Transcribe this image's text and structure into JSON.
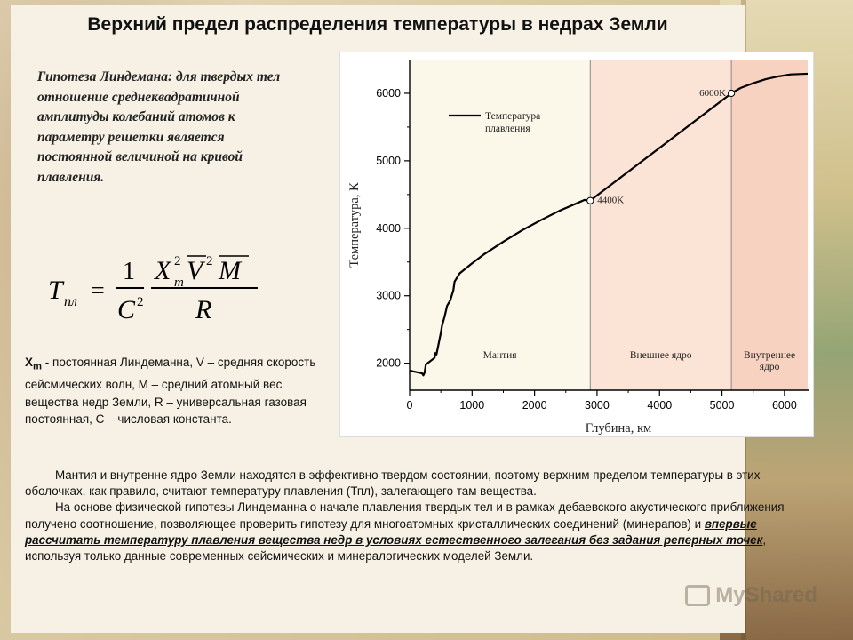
{
  "slide": {
    "title": "Верхний предел распределения температуры в недрах Земли",
    "hypothesis_text": "Гипотеза Линдемана: для твердых тел отношение среднеквадратичной амплитуды колебаний атомов к параметру решетки является постоянной величиной на кривой плавления.",
    "formula": {
      "lhs": "T",
      "lhs_sub": "пл",
      "num1": "1",
      "den1": "C",
      "den1_sup": "2",
      "num2_x": "X",
      "num2_x_sup": "2",
      "num2_x_sub": "m",
      "num2_v": "V",
      "num2_v_sup": "2",
      "num2_m": "M",
      "den2": "R"
    },
    "definitions_text": "X",
    "definitions_sub": "m",
    "definitions_rest": " - постоянная Линдеманна, V – средняя скорость сейсмических волн, M – средний атомный вес вещества недр Земли, R – универсальная газовая постоянная, C – числовая константа.",
    "paragraph1": "Мантия и внутренне ядро Земли находятся в эффективно твердом состоянии, поэтому верхним пределом температуры в этих оболочках, как правило, считают температуру плавления (Тпл), залегающего там вещества.",
    "paragraph2_start": "На основе физической гипотезы Линдеманна о начале плавления твердых тел и в рамках дебаевского акустического приближения получено соотношение, позволяющее проверить гипотезу для многоатомных кристаллических соединений (минерапов) и ",
    "paragraph2_emph": "впервые рассчитать температуру плавления вещества недр в условиях естественного залегания без задания реперных точек",
    "paragraph2_end": ", используя только данные современных сейсмических и минералогических моделей Земли.",
    "watermark": "MyShared"
  },
  "colors": {
    "mantle_bg": "#fbf8ea",
    "outer_core_bg": "#fbe3d6",
    "inner_core_bg": "#f8d2c0",
    "line": "#000000"
  },
  "chart_data": {
    "type": "line",
    "title": "",
    "xlabel": "Глубина, км",
    "ylabel": "Температура, К",
    "xlim": [
      0,
      6400
    ],
    "ylim": [
      1600,
      6500
    ],
    "xticks": [
      0,
      1000,
      2000,
      3000,
      4000,
      5000,
      6000
    ],
    "yticks": [
      2000,
      3000,
      4000,
      5000,
      6000
    ],
    "legend": "top-left",
    "series": [
      {
        "name": "Температура плавления",
        "x": [
          0,
          200,
          220,
          240,
          260,
          400,
          410,
          430,
          500,
          520,
          560,
          600,
          650,
          700,
          720,
          800,
          1000,
          1200,
          1500,
          1800,
          2100,
          2400,
          2700,
          2800,
          2891,
          5150,
          5300,
          5500,
          5700,
          5900,
          6100,
          6371
        ],
        "y": [
          1890,
          1850,
          1820,
          1860,
          1980,
          2080,
          2150,
          2130,
          2450,
          2560,
          2690,
          2850,
          2930,
          3080,
          3210,
          3330,
          3480,
          3620,
          3800,
          3970,
          4120,
          4260,
          4380,
          4420,
          4410,
          6000,
          6080,
          6150,
          6210,
          6250,
          6280,
          6290
        ]
      }
    ],
    "markers": [
      {
        "x": 2891,
        "y": 4410,
        "label": "4400K"
      },
      {
        "x": 5150,
        "y": 6000,
        "label": "6000K"
      }
    ],
    "regions": [
      {
        "from": 0,
        "to": 2891,
        "label": "Мантия"
      },
      {
        "from": 2891,
        "to": 5150,
        "label": "Внешнее ядро"
      },
      {
        "from": 5150,
        "to": 6371,
        "label": "Внутреннее ядро"
      }
    ]
  }
}
